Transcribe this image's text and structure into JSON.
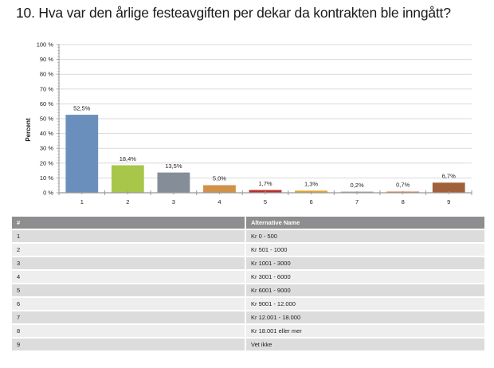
{
  "page": {
    "title": "10. Hva var den årlige festeavgiften per dekar da kontrakten ble inngått?"
  },
  "chart_data": {
    "type": "bar",
    "title": "10. Hva var den årlige festeavgiften per dekar da kontrakten ble inngått?",
    "xlabel": "",
    "ylabel": "Percent",
    "ylim": [
      0,
      100
    ],
    "yticks": [
      "0 %",
      "10 %",
      "20 %",
      "30 %",
      "40 %",
      "50 %",
      "60 %",
      "70 %",
      "80 %",
      "90 %",
      "100 %"
    ],
    "grid": true,
    "categories": [
      "1",
      "2",
      "3",
      "4",
      "5",
      "6",
      "7",
      "8",
      "9"
    ],
    "values": [
      52.5,
      18.4,
      13.5,
      5.0,
      1.7,
      1.3,
      0.2,
      0.7,
      6.7
    ],
    "data_labels": [
      "52,5%",
      "18,4%",
      "13,5%",
      "5,0%",
      "1,7%",
      "1,3%",
      "0,2%",
      "0,7%",
      "6,7%"
    ],
    "colors": [
      "#6a8fbd",
      "#a7c64a",
      "#848d98",
      "#d0914a",
      "#b8322a",
      "#e0a531",
      "#a9a9a9",
      "#e07b4d",
      "#a0603a"
    ]
  },
  "table": {
    "headers": [
      "#",
      "Alternative Name"
    ],
    "rows": [
      [
        "1",
        "Kr 0 - 500"
      ],
      [
        "2",
        "Kr 501 - 1000"
      ],
      [
        "3",
        "Kr 1001 - 3000"
      ],
      [
        "4",
        "Kr 3001 - 6000"
      ],
      [
        "5",
        "Kr 6001 - 9000"
      ],
      [
        "6",
        "Kr 9001 - 12.000"
      ],
      [
        "7",
        "Kr 12.001 - 18.000"
      ],
      [
        "8",
        "Kr 18.001 eller mer"
      ],
      [
        "9",
        "Vet ikke"
      ]
    ]
  }
}
